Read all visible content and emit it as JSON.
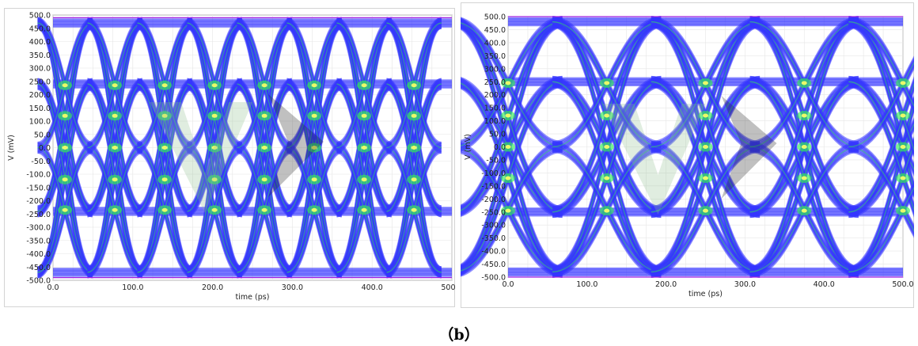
{
  "caption": "（b）",
  "chart_data": [
    {
      "type": "eye-diagram",
      "xlabel": "time (ps)",
      "ylabel": "V (mV)",
      "xlim": [
        0,
        500
      ],
      "ylim": [
        -500,
        500
      ],
      "xticks": [
        "0.0",
        "100.0",
        "200.0",
        "300.0",
        "400.0",
        "500.0"
      ],
      "yticks": [
        "500.0",
        "450.0",
        "400.0",
        "350.0",
        "300.0",
        "250.0",
        "200.0",
        "150.0",
        "100.0",
        "50.0",
        "0.0",
        "-50.0",
        "-100.0",
        "-150.0",
        "-200.0",
        "-250.0",
        "-300.0",
        "-350.0",
        "-400.0",
        "-450.0",
        "-500.0"
      ],
      "grid": true,
      "unit_interval_ps": 62.5,
      "crossing_times_ps": [
        15,
        77.5,
        140,
        202.5,
        265,
        327.5,
        390,
        452.5
      ],
      "levels_mV": [
        -470,
        -240,
        0,
        240,
        470
      ],
      "colors": {
        "trace": "#3535ff",
        "edge": "#a020e0",
        "density": "#33ee55",
        "hot": "#ffff66"
      }
    },
    {
      "type": "eye-diagram",
      "xlabel": "time (ps)",
      "ylabel": "V (mV)",
      "xlim": [
        0,
        500
      ],
      "ylim": [
        -500,
        500
      ],
      "xticks": [
        "0.0",
        "100.0",
        "200.0",
        "300.0",
        "400.0",
        "500.0"
      ],
      "yticks": [
        "500.0",
        "450.0",
        "400.0",
        "350.0",
        "300.0",
        "250.0",
        "200.0",
        "150.0",
        "100.0",
        "50.0",
        "0.0",
        "-50.0",
        "-100.0",
        "-150.0",
        "-200.0",
        "-250.0",
        "-300.0",
        "-350.0",
        "-400.0",
        "-450.0",
        "-500.0"
      ],
      "grid": true,
      "unit_interval_ps": 125,
      "crossing_times_ps": [
        0,
        125,
        250,
        375,
        500
      ],
      "levels_mV": [
        -480,
        -250,
        0,
        250,
        480
      ],
      "colors": {
        "trace": "#3535ff",
        "edge": "#a020e0",
        "density": "#33ee55",
        "hot": "#ffff66"
      }
    }
  ]
}
